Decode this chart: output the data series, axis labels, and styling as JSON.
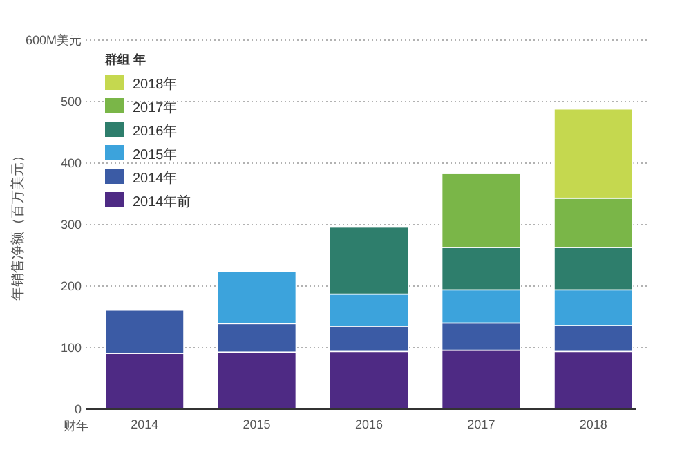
{
  "chart_data": {
    "type": "bar",
    "stacked": true,
    "xlabel": "财年",
    "ylabel": "年销售净额（百万美元）",
    "legend_title": "群组 年",
    "categories": [
      "2014",
      "2015",
      "2016",
      "2017",
      "2018"
    ],
    "series": [
      {
        "name": "2014年前",
        "color": "#4e2a84",
        "values": [
          91,
          93,
          94,
          96,
          94
        ]
      },
      {
        "name": "2014年",
        "color": "#3b5ba5",
        "values": [
          70,
          46,
          41,
          44,
          42
        ]
      },
      {
        "name": "2015年",
        "color": "#3ca3dc",
        "values": [
          null,
          85,
          52,
          54,
          58
        ]
      },
      {
        "name": "2016年",
        "color": "#2e7e6c",
        "values": [
          null,
          null,
          109,
          69,
          69
        ]
      },
      {
        "name": "2017年",
        "color": "#7ab648",
        "values": [
          null,
          null,
          null,
          120,
          80
        ]
      },
      {
        "name": "2018年",
        "color": "#c5d84f",
        "values": [
          null,
          null,
          null,
          null,
          145
        ]
      }
    ],
    "ylim": [
      0,
      600
    ],
    "yticks": [
      0,
      100,
      200,
      300,
      400,
      500,
      {
        "value": 600,
        "label": "600M美元"
      }
    ],
    "grid": "y",
    "legend": "top left"
  }
}
